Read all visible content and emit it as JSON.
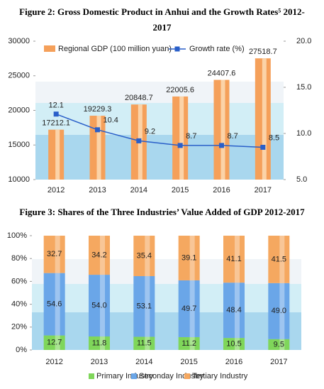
{
  "chart_data": [
    {
      "type": "bar-line",
      "title": "Figure 2: Gross Domestic Product in Anhui and the Growth Rates⁵ 2012-2017",
      "categories": [
        "2012",
        "2013",
        "2014",
        "2015",
        "2016",
        "2017"
      ],
      "series": [
        {
          "name": "Regional GDP (100 million yuan)",
          "color": "#f5a05a",
          "values": [
            17212.1,
            19229.3,
            20848.7,
            22005.6,
            24407.6,
            27518.7
          ]
        },
        {
          "name": "Growth rate (%)",
          "color": "#2a5fc9",
          "axis": "y2",
          "values": [
            12.1,
            10.4,
            9.2,
            8.7,
            8.7,
            8.5
          ]
        }
      ],
      "ylim": [
        10000,
        30000
      ],
      "yticks": [
        10000,
        15000,
        20000,
        25000,
        30000
      ],
      "y2lim": [
        5,
        20
      ],
      "y2ticks": [
        {
          "value": 5,
          "label": "5.0"
        },
        {
          "value": 10,
          "label": "10.0"
        },
        {
          "value": 15,
          "label": "15.0"
        },
        {
          "value": 20,
          "label": "20.0"
        }
      ]
    },
    {
      "type": "stacked-bar",
      "title": "Figure 3: Shares of the Three Industries’ Value Added of GDP 2012-2017",
      "categories": [
        "2012",
        "2013",
        "2014",
        "2015",
        "2016",
        "2017"
      ],
      "series": [
        {
          "name": "Primary Industry",
          "color": "#7fd65a",
          "values": [
            12.7,
            11.8,
            11.5,
            11.2,
            10.5,
            9.5
          ]
        },
        {
          "name": "Seconday Industry",
          "color": "#6aa6e8",
          "values": [
            54.6,
            54.0,
            53.1,
            49.7,
            48.4,
            49.0
          ],
          "value_labels": [
            "54.6",
            "54.0",
            "53.1",
            "49.7",
            "48.4",
            "49.0"
          ]
        },
        {
          "name": "Tertiary Industry",
          "color": "#f5a860",
          "values": [
            32.7,
            34.2,
            35.4,
            39.1,
            41.1,
            41.5
          ]
        }
      ],
      "ylim": [
        0,
        100
      ],
      "yticks": [
        {
          "value": 0,
          "label": "0%"
        },
        {
          "value": 20,
          "label": "20%"
        },
        {
          "value": 40,
          "label": "40%"
        },
        {
          "value": 60,
          "label": "60%"
        },
        {
          "value": 80,
          "label": "80%"
        },
        {
          "value": 100,
          "label": "100%"
        }
      ]
    }
  ]
}
